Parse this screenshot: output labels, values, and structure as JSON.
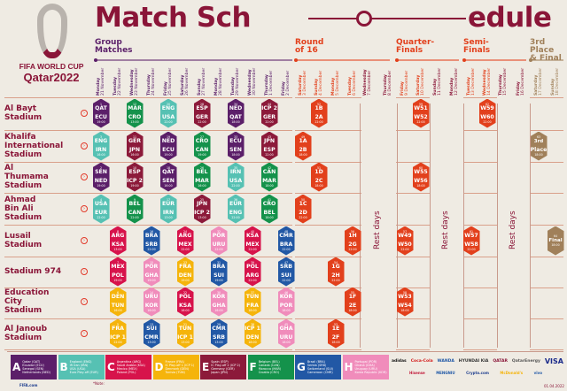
{
  "header": {
    "title_left": "Match Sch",
    "title_right": "edule",
    "logo_line1": "FIFA WORLD CUP",
    "logo_line2": "Qatar2022"
  },
  "phases": [
    {
      "label_1": "Group",
      "label_2": "Matches",
      "color": "#5b1f69"
    },
    {
      "label_1": "Round",
      "label_2": "of 16",
      "color": "#e2401c"
    },
    {
      "label_1": "Quarter-",
      "label_2": "Finals",
      "color": "#e2401c"
    },
    {
      "label_1": "Semi-",
      "label_2": "Finals",
      "color": "#e2401c"
    },
    {
      "label_1": "3rd Place",
      "label_2": "& Final",
      "color": "#a0805a"
    }
  ],
  "days": [
    {
      "weekday": "Monday",
      "date": "21 November",
      "phase": "group"
    },
    {
      "weekday": "Tuesday",
      "date": "22 November",
      "phase": "group"
    },
    {
      "weekday": "Wednesday",
      "date": "23 November",
      "phase": "group"
    },
    {
      "weekday": "Thursday",
      "date": "24 November",
      "phase": "group"
    },
    {
      "weekday": "Friday",
      "date": "25 November",
      "phase": "group"
    },
    {
      "weekday": "Saturday",
      "date": "26 November",
      "phase": "group"
    },
    {
      "weekday": "Sunday",
      "date": "27 November",
      "phase": "group"
    },
    {
      "weekday": "Monday",
      "date": "28 November",
      "phase": "group"
    },
    {
      "weekday": "Tuesday",
      "date": "29 November",
      "phase": "group"
    },
    {
      "weekday": "Wednesday",
      "date": "30 November",
      "phase": "group"
    },
    {
      "weekday": "Thursday",
      "date": "1 December",
      "phase": "group"
    },
    {
      "weekday": "Friday",
      "date": "2 December",
      "phase": "group"
    },
    {
      "weekday": "Saturday",
      "date": "3 December",
      "phase": "ko"
    },
    {
      "weekday": "Sunday",
      "date": "4 December",
      "phase": "ko"
    },
    {
      "weekday": "Monday",
      "date": "5 December",
      "phase": "ko"
    },
    {
      "weekday": "Tuesday",
      "date": "6 December",
      "phase": "ko"
    },
    {
      "weekday": "Wednesday",
      "date": "7 December",
      "phase": "rest"
    },
    {
      "weekday": "Thursday",
      "date": "8 December",
      "phase": "rest"
    },
    {
      "weekday": "Friday",
      "date": "9 December",
      "phase": "ko"
    },
    {
      "weekday": "Saturday",
      "date": "10 December",
      "phase": "ko"
    },
    {
      "weekday": "Sunday",
      "date": "11 December",
      "phase": "rest"
    },
    {
      "weekday": "Monday",
      "date": "12 December",
      "phase": "rest"
    },
    {
      "weekday": "Tuesday",
      "date": "13 December",
      "phase": "ko"
    },
    {
      "weekday": "Wednesday",
      "date": "14 December",
      "phase": "ko"
    },
    {
      "weekday": "Thursday",
      "date": "15 December",
      "phase": "rest"
    },
    {
      "weekday": "Friday",
      "date": "16 December",
      "phase": "rest"
    },
    {
      "weekday": "Saturday",
      "date": "17 December",
      "phase": "final"
    },
    {
      "weekday": "Sunday",
      "date": "18 December",
      "phase": "final"
    }
  ],
  "rest_label": "Rest days",
  "group_colors": {
    "A": "#5b1f69",
    "B": "#56c1b3",
    "C": "#d7134b",
    "D": "#f5b40b",
    "E": "#8c1a3a",
    "F": "#14924b",
    "G": "#2258a5",
    "H": "#f08cbb",
    "KO": "#e2401c",
    "FIN": "#a0805a"
  },
  "stadiums": [
    {
      "name": "Al Bayt Stadium",
      "lines": [
        "Al Bayt",
        "Stadium"
      ],
      "matches": [
        {
          "day": 0,
          "num": "1",
          "home": "QAT",
          "away": "ECU",
          "time": "19:00",
          "group": "A"
        },
        {
          "day": 2,
          "num": "12",
          "home": "MAR",
          "away": "CRO",
          "time": "13:00",
          "group": "F"
        },
        {
          "day": 4,
          "num": "20",
          "home": "ENG",
          "away": "USA",
          "time": "22:00",
          "group": "B"
        },
        {
          "day": 6,
          "num": "28",
          "home": "ESP",
          "away": "GER",
          "time": "22:00",
          "group": "E"
        },
        {
          "day": 8,
          "num": "34",
          "home": "NED",
          "away": "QAT",
          "time": "18:00",
          "group": "A"
        },
        {
          "day": 10,
          "num": "44",
          "home": "ICP 2",
          "away": "GER",
          "time": "22:00",
          "group": "E"
        },
        {
          "day": 13,
          "num": "52",
          "home": "1B",
          "away": "2A",
          "time": "22:00",
          "group": "KO"
        },
        {
          "day": 19,
          "num": "59",
          "home": "W51",
          "away": "W52",
          "time": "22:00",
          "group": "KO"
        },
        {
          "day": 23,
          "num": "62",
          "home": "W59",
          "away": "W60",
          "time": "22:00",
          "group": "KO"
        }
      ]
    },
    {
      "name": "Khalifa International Stadium",
      "lines": [
        "Khalifa",
        "International",
        "Stadium"
      ],
      "matches": [
        {
          "day": 0,
          "num": "3",
          "home": "ENG",
          "away": "IRN",
          "time": "16:00",
          "group": "B"
        },
        {
          "day": 2,
          "num": "11",
          "home": "GER",
          "away": "JPN",
          "time": "16:00",
          "group": "E"
        },
        {
          "day": 4,
          "num": "19",
          "home": "NED",
          "away": "ECU",
          "time": "19:00",
          "group": "A"
        },
        {
          "day": 6,
          "num": "27",
          "home": "CRO",
          "away": "CAN",
          "time": "19:00",
          "group": "F"
        },
        {
          "day": 8,
          "num": "33",
          "home": "ECU",
          "away": "SEN",
          "time": "18:00",
          "group": "A"
        },
        {
          "day": 10,
          "num": "43",
          "home": "JPN",
          "away": "ESP",
          "time": "22:00",
          "group": "E"
        },
        {
          "day": 12,
          "num": "49",
          "home": "1A",
          "away": "2B",
          "time": "18:00",
          "group": "KO"
        },
        {
          "day": 26,
          "num": "63",
          "home": "3rd",
          "away": "Place",
          "time": "18:00",
          "group": "FIN"
        }
      ]
    },
    {
      "name": "Al Thumama Stadium",
      "lines": [
        "Al",
        "Thumama",
        "Stadium"
      ],
      "matches": [
        {
          "day": 0,
          "num": "2",
          "home": "SEN",
          "away": "NED",
          "time": "19:00",
          "group": "A"
        },
        {
          "day": 2,
          "num": "10",
          "home": "ESP",
          "away": "ICP 2",
          "time": "19:00",
          "group": "E"
        },
        {
          "day": 4,
          "num": "18",
          "home": "QAT",
          "away": "SEN",
          "time": "16:00",
          "group": "A"
        },
        {
          "day": 6,
          "num": "26",
          "home": "BEL",
          "away": "MAR",
          "time": "16:00",
          "group": "F"
        },
        {
          "day": 8,
          "num": "35",
          "home": "IRN",
          "away": "USA",
          "time": "22:00",
          "group": "B"
        },
        {
          "day": 10,
          "num": "42",
          "home": "CAN",
          "away": "MAR",
          "time": "18:00",
          "group": "F"
        },
        {
          "day": 13,
          "num": "51",
          "home": "1D",
          "away": "2C",
          "time": "18:00",
          "group": "KO"
        },
        {
          "day": 19,
          "num": "60",
          "home": "W55",
          "away": "W56",
          "time": "18:00",
          "group": "KO"
        }
      ]
    },
    {
      "name": "Ahmad Bin Ali Stadium",
      "lines": [
        "Ahmad",
        "Bin Ali",
        "Stadium"
      ],
      "matches": [
        {
          "day": 0,
          "num": "4",
          "home": "USA",
          "away": "EUR",
          "time": "22:00",
          "group": "B"
        },
        {
          "day": 2,
          "num": "9",
          "home": "BEL",
          "away": "CAN",
          "time": "22:00",
          "group": "F"
        },
        {
          "day": 4,
          "num": "17",
          "home": "EUR",
          "away": "IRN",
          "time": "13:00",
          "group": "B"
        },
        {
          "day": 6,
          "num": "25",
          "home": "JPN",
          "away": "ICP 2",
          "time": "13:00",
          "group": "E"
        },
        {
          "day": 8,
          "num": "36",
          "home": "EUR",
          "away": "ENG",
          "time": "22:00",
          "group": "B"
        },
        {
          "day": 10,
          "num": "41",
          "home": "CRO",
          "away": "BEL",
          "time": "18:00",
          "group": "F"
        },
        {
          "day": 12,
          "num": "50",
          "home": "1C",
          "away": "2D",
          "time": "22:00",
          "group": "KO"
        }
      ]
    },
    {
      "name": "Lusail Stadium",
      "lines": [
        "Lusail",
        "Stadium"
      ],
      "matches": [
        {
          "day": 1,
          "num": "8",
          "home": "ARG",
          "away": "KSA",
          "time": "13:00",
          "group": "C"
        },
        {
          "day": 3,
          "num": "16",
          "home": "BRA",
          "away": "SRB",
          "time": "22:00",
          "group": "G"
        },
        {
          "day": 5,
          "num": "24",
          "home": "ARG",
          "away": "MEX",
          "time": "22:00",
          "group": "C"
        },
        {
          "day": 7,
          "num": "32",
          "home": "POR",
          "away": "URU",
          "time": "22:00",
          "group": "H"
        },
        {
          "day": 9,
          "num": "40",
          "home": "KSA",
          "away": "MEX",
          "time": "22:00",
          "group": "C"
        },
        {
          "day": 11,
          "num": "48",
          "home": "CMR",
          "away": "BRA",
          "time": "22:00",
          "group": "G"
        },
        {
          "day": 15,
          "num": "56",
          "home": "1H",
          "away": "2G",
          "time": "22:00",
          "group": "KO"
        },
        {
          "day": 18,
          "num": "57",
          "home": "W49",
          "away": "W50",
          "time": "22:00",
          "group": "KO"
        },
        {
          "day": 22,
          "num": "61",
          "home": "W57",
          "away": "W58",
          "time": "22:00",
          "group": "KO"
        },
        {
          "day": 27,
          "num": "64",
          "home": "Final",
          "away": "",
          "time": "18:00",
          "group": "FIN"
        }
      ]
    },
    {
      "name": "Stadium 974",
      "lines": [
        "Stadium 974"
      ],
      "matches": [
        {
          "day": 1,
          "num": "7",
          "home": "MEX",
          "away": "POL",
          "time": "19:00",
          "group": "C"
        },
        {
          "day": 3,
          "num": "15",
          "home": "POR",
          "away": "GHA",
          "time": "19:00",
          "group": "H"
        },
        {
          "day": 5,
          "num": "23",
          "home": "FRA",
          "away": "DEN",
          "time": "19:00",
          "group": "D"
        },
        {
          "day": 7,
          "num": "31",
          "home": "BRA",
          "away": "SUI",
          "time": "19:00",
          "group": "G"
        },
        {
          "day": 9,
          "num": "39",
          "home": "POL",
          "away": "ARG",
          "time": "22:00",
          "group": "C"
        },
        {
          "day": 11,
          "num": "47",
          "home": "SRB",
          "away": "SUI",
          "time": "22:00",
          "group": "G"
        },
        {
          "day": 14,
          "num": "54",
          "home": "1G",
          "away": "2H",
          "time": "22:00",
          "group": "KO"
        }
      ]
    },
    {
      "name": "Education City Stadium",
      "lines": [
        "Education",
        "City",
        "Stadium"
      ],
      "matches": [
        {
          "day": 1,
          "num": "6",
          "home": "DEN",
          "away": "TUN",
          "time": "16:00",
          "group": "D"
        },
        {
          "day": 3,
          "num": "14",
          "home": "URU",
          "away": "KOR",
          "time": "16:00",
          "group": "H"
        },
        {
          "day": 5,
          "num": "22",
          "home": "POL",
          "away": "KSA",
          "time": "16:00",
          "group": "C"
        },
        {
          "day": 7,
          "num": "30",
          "home": "KOR",
          "away": "GHA",
          "time": "16:00",
          "group": "H"
        },
        {
          "day": 9,
          "num": "37",
          "home": "TUN",
          "away": "FRA",
          "time": "18:00",
          "group": "D"
        },
        {
          "day": 11,
          "num": "46",
          "home": "KOR",
          "away": "POR",
          "time": "18:00",
          "group": "H"
        },
        {
          "day": 15,
          "num": "55",
          "home": "1F",
          "away": "2E",
          "time": "18:00",
          "group": "KO"
        },
        {
          "day": 18,
          "num": "58",
          "home": "W53",
          "away": "W54",
          "time": "18:00",
          "group": "KO"
        }
      ]
    },
    {
      "name": "Al Janoub Stadium",
      "lines": [
        "Al Janoub",
        "Stadium"
      ],
      "matches": [
        {
          "day": 1,
          "num": "5",
          "home": "FRA",
          "away": "ICP 1",
          "time": "22:00",
          "group": "D"
        },
        {
          "day": 3,
          "num": "13",
          "home": "SUI",
          "away": "CMR",
          "time": "13:00",
          "group": "G"
        },
        {
          "day": 5,
          "num": "21",
          "home": "TUN",
          "away": "ICP 1",
          "time": "13:00",
          "group": "D"
        },
        {
          "day": 7,
          "num": "29",
          "home": "CMR",
          "away": "SRB",
          "time": "13:00",
          "group": "G"
        },
        {
          "day": 9,
          "num": "38",
          "home": "ICP 1",
          "away": "DEN",
          "time": "18:00",
          "group": "D"
        },
        {
          "day": 11,
          "num": "45",
          "home": "GHA",
          "away": "URU",
          "time": "18:00",
          "group": "H"
        },
        {
          "day": 14,
          "num": "53",
          "home": "1E",
          "away": "2F",
          "time": "18:00",
          "group": "KO"
        }
      ]
    }
  ],
  "legend": [
    {
      "letter": "A",
      "teams": [
        "Qatar (QAT)",
        "Ecuador (ECU)",
        "Senegal (SEN)",
        "Netherlands (NED)"
      ]
    },
    {
      "letter": "B",
      "teams": [
        "England (ENG)",
        "IR Iran (IRN)",
        "USA (USA)",
        "Euro Play-off (EUR)"
      ]
    },
    {
      "letter": "C",
      "teams": [
        "Argentina (ARG)",
        "Saudi Arabia (KSA)",
        "Mexico (MEX)",
        "Poland (POL)"
      ]
    },
    {
      "letter": "D",
      "teams": [
        "France (FRA)",
        "IC Play-off 1 (ICP 1)",
        "Denmark (DEN)",
        "Tunisia (TUN)"
      ]
    },
    {
      "letter": "E",
      "teams": [
        "Spain (ESP)",
        "IC Play-off 2 (ICP 2)",
        "Germany (GER)",
        "Japan (JPN)"
      ]
    },
    {
      "letter": "F",
      "teams": [
        "Belgium (BEL)",
        "Canada (CAN)",
        "Morocco (MAR)",
        "Croatia (CRO)"
      ]
    },
    {
      "letter": "G",
      "teams": [
        "Brazil (BRA)",
        "Serbia (SRB)",
        "Switzerland (SUI)",
        "Cameroon (CMR)"
      ]
    },
    {
      "letter": "H",
      "teams": [
        "Portugal (POR)",
        "Ghana (GHA)",
        "Uruguay (URU)",
        "Korea Republic (KOR)"
      ]
    }
  ],
  "sponsors_row1": [
    "adidas",
    "Coca-Cola",
    "WANDA",
    "HYUNDAI KIA",
    "QATAR",
    "QatarEnergy",
    "VISA"
  ],
  "sponsors_row2": [
    "Hisense",
    "MENGNIU",
    "Crypto.com",
    "McDonald's",
    "vivo"
  ],
  "footer": {
    "note": "*Note:",
    "date": "01.04.2022",
    "fifa": "FIFA.com"
  }
}
